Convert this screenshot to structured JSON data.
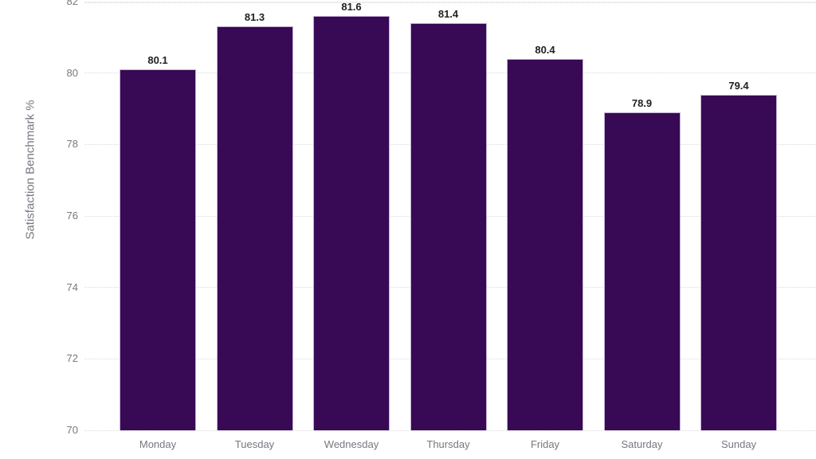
{
  "chart_data": {
    "type": "bar",
    "title": "",
    "xlabel": "",
    "ylabel": "Satisfaction Benchmark %",
    "categories": [
      "Monday",
      "Tuesday",
      "Wednesday",
      "Thursday",
      "Friday",
      "Saturday",
      "Sunday"
    ],
    "values": [
      80.1,
      81.3,
      81.6,
      81.4,
      80.4,
      78.9,
      79.4
    ],
    "data_labels": [
      "80.1",
      "81.3",
      "81.6",
      "81.4",
      "80.4",
      "78.9",
      "79.4"
    ],
    "ylim": [
      70,
      82
    ],
    "yticks": [
      70,
      72,
      74,
      76,
      78,
      80,
      82
    ],
    "ytick_labels": [
      "70",
      "72",
      "74",
      "76",
      "78",
      "80",
      "82"
    ],
    "grid": true,
    "legend": false,
    "colors": {
      "bar_fill": "#380954",
      "bar_border": "#c3b2d5",
      "gridline": "#e9e9ec",
      "axis_text": "#77777f",
      "data_label_text": "#212121"
    }
  }
}
